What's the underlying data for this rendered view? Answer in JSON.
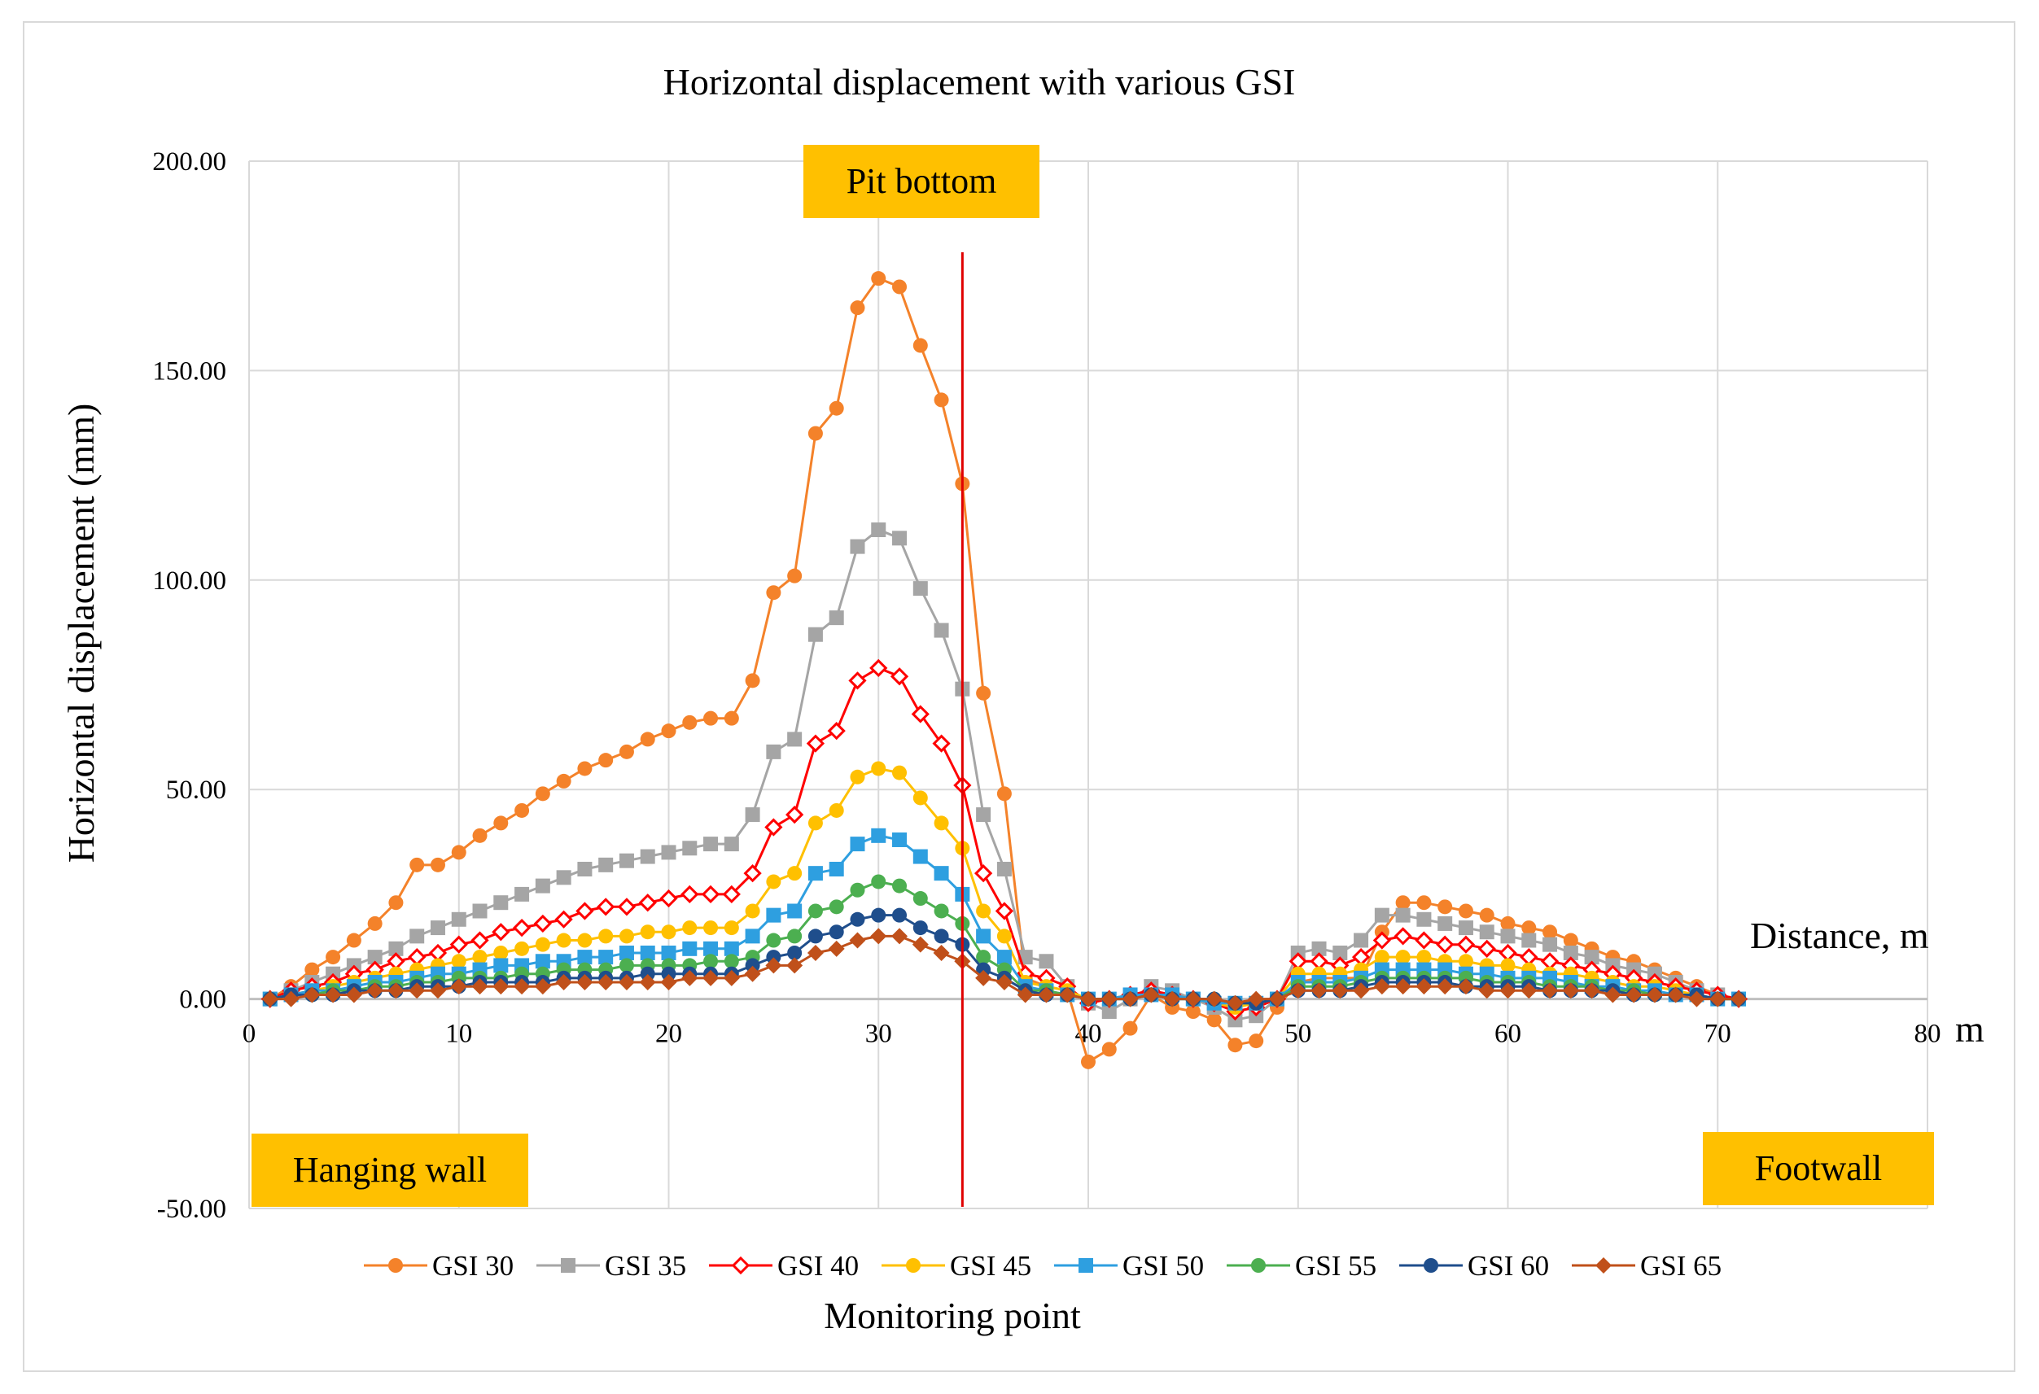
{
  "chart_data": {
    "type": "line",
    "title": "Horizontal displacement with various GSI",
    "ylabel": "Horizontal displacement (mm)",
    "xlabel": "Monitoring point",
    "x_axis_note": "Distance, m",
    "x_unit_label": "m",
    "xlim": [
      0,
      80
    ],
    "ylim": [
      -50,
      200
    ],
    "x_ticks": [
      "0",
      "10",
      "20",
      "30",
      "40",
      "50",
      "60",
      "70",
      "80"
    ],
    "y_ticks": [
      "200.00",
      "150.00",
      "100.00",
      "50.00",
      "0.00",
      "-50.00"
    ],
    "grid": true,
    "legend_position": "bottom",
    "marker_line_x": 34,
    "annotations": {
      "pit_bottom": "Pit bottom",
      "hanging_wall": "Hanging wall",
      "footwall": "Footwall"
    },
    "annotation_color": "#ffc000",
    "marker_line_color": "#e00000",
    "x": [
      1,
      2,
      3,
      4,
      5,
      6,
      7,
      8,
      9,
      10,
      11,
      12,
      13,
      14,
      15,
      16,
      17,
      18,
      19,
      20,
      21,
      22,
      23,
      24,
      25,
      26,
      27,
      28,
      29,
      30,
      31,
      32,
      33,
      34,
      35,
      36,
      37,
      38,
      39,
      40,
      41,
      42,
      43,
      44,
      45,
      46,
      47,
      48,
      49,
      50,
      51,
      52,
      53,
      54,
      55,
      56,
      57,
      58,
      59,
      60,
      61,
      62,
      63,
      64,
      65,
      66,
      67,
      68,
      69,
      70,
      71
    ],
    "series": [
      {
        "name": "GSI 30",
        "color": "#f4822a",
        "marker": "circle",
        "values": [
          0,
          3,
          7,
          10,
          14,
          18,
          23,
          32,
          32,
          35,
          39,
          42,
          45,
          49,
          52,
          55,
          57,
          59,
          62,
          64,
          66,
          67,
          67,
          76,
          97,
          101,
          135,
          141,
          165,
          172,
          170,
          156,
          143,
          123,
          73,
          49,
          5,
          3,
          2,
          -15,
          -12,
          -7,
          1,
          -2,
          -3,
          -5,
          -11,
          -10,
          -2,
          4,
          5,
          5,
          5,
          16,
          23,
          23,
          22,
          21,
          20,
          18,
          17,
          16,
          14,
          12,
          10,
          9,
          7,
          5,
          3,
          1,
          0
        ]
      },
      {
        "name": "GSI 35",
        "color": "#a5a5a5",
        "marker": "square",
        "values": [
          0,
          2,
          4,
          6,
          8,
          10,
          12,
          15,
          17,
          19,
          21,
          23,
          25,
          27,
          29,
          31,
          32,
          33,
          34,
          35,
          36,
          37,
          37,
          44,
          59,
          62,
          87,
          91,
          108,
          112,
          110,
          98,
          88,
          74,
          44,
          31,
          10,
          9,
          3,
          -1,
          -3,
          0,
          3,
          2,
          0,
          -2,
          -5,
          -4,
          0,
          11,
          12,
          11,
          14,
          20,
          20,
          19,
          18,
          17,
          16,
          15,
          14,
          13,
          11,
          10,
          8,
          7,
          6,
          4,
          2,
          1,
          0
        ]
      },
      {
        "name": "GSI 40",
        "color": "#ff0000",
        "marker": "diamond-open",
        "values": [
          0,
          2,
          3,
          4,
          6,
          7,
          9,
          10,
          11,
          13,
          14,
          16,
          17,
          18,
          19,
          21,
          22,
          22,
          23,
          24,
          25,
          25,
          25,
          30,
          41,
          44,
          61,
          64,
          76,
          79,
          77,
          68,
          61,
          51,
          30,
          21,
          6,
          5,
          3,
          -1,
          0,
          1,
          2,
          1,
          0,
          -1,
          -3,
          -2,
          0,
          9,
          9,
          8,
          10,
          14,
          15,
          14,
          13,
          13,
          12,
          11,
          10,
          9,
          8,
          7,
          6,
          5,
          4,
          3,
          2,
          1,
          0
        ]
      },
      {
        "name": "GSI 45",
        "color": "#ffc000",
        "marker": "circle",
        "values": [
          0,
          1,
          2,
          3,
          4,
          5,
          6,
          7,
          8,
          9,
          10,
          11,
          12,
          13,
          14,
          14,
          15,
          15,
          16,
          16,
          17,
          17,
          17,
          21,
          28,
          30,
          42,
          45,
          53,
          55,
          54,
          48,
          42,
          36,
          21,
          15,
          4,
          3,
          2,
          0,
          0,
          1,
          1,
          1,
          0,
          -1,
          -2,
          -1,
          0,
          6,
          6,
          6,
          7,
          10,
          10,
          10,
          9,
          9,
          8,
          8,
          7,
          6,
          6,
          5,
          4,
          3,
          3,
          2,
          1,
          0,
          0
        ]
      },
      {
        "name": "GSI 50",
        "color": "#2e9fe0",
        "marker": "square",
        "values": [
          0,
          1,
          2,
          2,
          3,
          4,
          4,
          5,
          6,
          6,
          7,
          8,
          8,
          9,
          9,
          10,
          10,
          11,
          11,
          11,
          12,
          12,
          12,
          15,
          20,
          21,
          30,
          31,
          37,
          39,
          38,
          34,
          30,
          25,
          15,
          10,
          3,
          2,
          1,
          0,
          0,
          1,
          1,
          1,
          0,
          -1,
          -1,
          -1,
          0,
          4,
          4,
          4,
          5,
          7,
          7,
          7,
          7,
          6,
          6,
          5,
          5,
          5,
          4,
          3,
          3,
          2,
          2,
          1,
          1,
          0,
          0
        ]
      },
      {
        "name": "GSI 55",
        "color": "#4caf50",
        "marker": "circle",
        "values": [
          0,
          1,
          1,
          2,
          2,
          3,
          3,
          4,
          4,
          5,
          5,
          5,
          6,
          6,
          7,
          7,
          7,
          8,
          8,
          8,
          8,
          9,
          9,
          10,
          14,
          15,
          21,
          22,
          26,
          28,
          27,
          24,
          21,
          18,
          10,
          7,
          2,
          2,
          1,
          0,
          0,
          0,
          1,
          0,
          0,
          0,
          -1,
          -1,
          0,
          3,
          3,
          3,
          4,
          5,
          5,
          5,
          5,
          5,
          4,
          4,
          4,
          3,
          3,
          3,
          2,
          2,
          1,
          1,
          1,
          0,
          0
        ]
      },
      {
        "name": "GSI 60",
        "color": "#1f4e8c",
        "marker": "circle",
        "values": [
          0,
          1,
          1,
          1,
          2,
          2,
          2,
          3,
          3,
          3,
          4,
          4,
          4,
          4,
          5,
          5,
          5,
          5,
          6,
          6,
          6,
          6,
          6,
          8,
          10,
          11,
          15,
          16,
          19,
          20,
          20,
          17,
          15,
          13,
          7,
          5,
          2,
          1,
          1,
          0,
          0,
          0,
          1,
          0,
          0,
          0,
          -1,
          -1,
          0,
          2,
          2,
          2,
          3,
          4,
          4,
          4,
          4,
          3,
          3,
          3,
          3,
          2,
          2,
          2,
          2,
          1,
          1,
          1,
          1,
          0,
          0
        ]
      },
      {
        "name": "GSI 65",
        "color": "#c0501a",
        "marker": "diamond",
        "values": [
          0,
          0,
          1,
          1,
          1,
          2,
          2,
          2,
          2,
          3,
          3,
          3,
          3,
          3,
          4,
          4,
          4,
          4,
          4,
          4,
          5,
          5,
          5,
          6,
          8,
          8,
          11,
          12,
          14,
          15,
          15,
          13,
          11,
          9,
          5,
          4,
          1,
          1,
          1,
          0,
          0,
          0,
          1,
          0,
          0,
          0,
          -1,
          0,
          0,
          2,
          2,
          2,
          2,
          3,
          3,
          3,
          3,
          3,
          2,
          2,
          2,
          2,
          2,
          2,
          1,
          1,
          1,
          1,
          0,
          0,
          0
        ]
      }
    ]
  }
}
